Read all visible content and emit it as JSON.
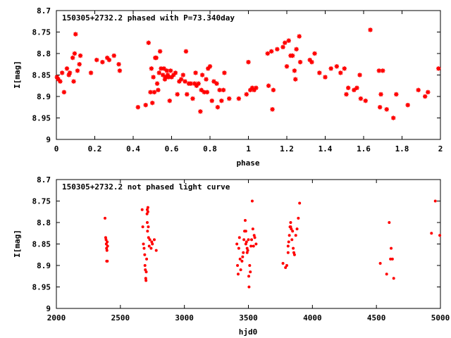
{
  "colors": {
    "points": "#ff0000",
    "frame": "#000000",
    "background": "#ffffff"
  },
  "chart_data": [
    {
      "type": "scatter",
      "title": "150305+2732.2 phased with P=73.340day",
      "xlabel": "phase",
      "ylabel": "I[mag]",
      "xlim": [
        0,
        2
      ],
      "ylim": [
        8.7,
        9
      ],
      "y_inverted": true,
      "grid": false,
      "xticks": [
        0,
        0.2,
        0.4,
        0.6,
        0.8,
        1,
        1.2,
        1.4,
        1.6,
        1.8,
        2
      ],
      "xtick_labels": [
        "0",
        "0.2",
        "0.4",
        "0.6",
        "0.8",
        "1",
        "1.2",
        "1.4",
        "1.6",
        "1.8",
        "2"
      ],
      "yticks": [
        8.7,
        8.75,
        8.8,
        8.85,
        8.9,
        8.95,
        9
      ],
      "ytick_labels": [
        "8.7",
        "8.75",
        "8.8",
        "8.85",
        "8.9",
        "8.95",
        "9"
      ],
      "marker": "star",
      "points": [
        [
          0.003,
          8.855
        ],
        [
          0.01,
          8.86
        ],
        [
          0.02,
          8.865
        ],
        [
          0.03,
          8.845
        ],
        [
          0.04,
          8.89
        ],
        [
          0.055,
          8.835
        ],
        [
          0.065,
          8.85
        ],
        [
          0.07,
          8.845
        ],
        [
          0.085,
          8.81
        ],
        [
          0.09,
          8.865
        ],
        [
          0.095,
          8.8
        ],
        [
          0.1,
          8.755
        ],
        [
          0.11,
          8.84
        ],
        [
          0.12,
          8.825
        ],
        [
          0.125,
          8.805
        ],
        [
          0.18,
          8.845
        ],
        [
          0.21,
          8.815
        ],
        [
          0.24,
          8.82
        ],
        [
          0.265,
          8.81
        ],
        [
          0.275,
          8.815
        ],
        [
          0.3,
          8.805
        ],
        [
          0.325,
          8.825
        ],
        [
          0.33,
          8.84
        ],
        [
          0.425,
          8.925
        ],
        [
          0.465,
          8.92
        ],
        [
          0.48,
          8.775
        ],
        [
          0.49,
          8.89
        ],
        [
          0.495,
          8.835
        ],
        [
          0.5,
          8.915
        ],
        [
          0.505,
          8.855
        ],
        [
          0.51,
          8.89
        ],
        [
          0.515,
          8.81
        ],
        [
          0.52,
          8.81
        ],
        [
          0.525,
          8.87
        ],
        [
          0.53,
          8.885
        ],
        [
          0.535,
          8.845
        ],
        [
          0.54,
          8.795
        ],
        [
          0.545,
          8.835
        ],
        [
          0.555,
          8.85
        ],
        [
          0.56,
          8.835
        ],
        [
          0.565,
          8.86
        ],
        [
          0.57,
          8.855
        ],
        [
          0.575,
          8.84
        ],
        [
          0.58,
          8.85
        ],
        [
          0.585,
          8.855
        ],
        [
          0.59,
          8.91
        ],
        [
          0.595,
          8.84
        ],
        [
          0.6,
          8.855
        ],
        [
          0.61,
          8.85
        ],
        [
          0.62,
          8.845
        ],
        [
          0.63,
          8.895
        ],
        [
          0.64,
          8.865
        ],
        [
          0.65,
          8.86
        ],
        [
          0.66,
          8.85
        ],
        [
          0.67,
          8.865
        ],
        [
          0.675,
          8.795
        ],
        [
          0.68,
          8.895
        ],
        [
          0.69,
          8.87
        ],
        [
          0.7,
          8.87
        ],
        [
          0.71,
          8.905
        ],
        [
          0.72,
          8.87
        ],
        [
          0.725,
          8.845
        ],
        [
          0.73,
          8.875
        ],
        [
          0.74,
          8.87
        ],
        [
          0.75,
          8.935
        ],
        [
          0.755,
          8.885
        ],
        [
          0.76,
          8.85
        ],
        [
          0.77,
          8.89
        ],
        [
          0.78,
          8.86
        ],
        [
          0.785,
          8.89
        ],
        [
          0.79,
          8.835
        ],
        [
          0.8,
          8.83
        ],
        [
          0.81,
          8.91
        ],
        [
          0.82,
          8.865
        ],
        [
          0.835,
          8.87
        ],
        [
          0.84,
          8.925
        ],
        [
          0.85,
          8.885
        ],
        [
          0.86,
          8.91
        ],
        [
          0.87,
          8.885
        ],
        [
          0.875,
          8.845
        ],
        [
          0.9,
          8.905
        ],
        [
          0.95,
          8.905
        ],
        [
          0.99,
          8.895
        ],
        [
          1.0,
          8.82
        ],
        [
          1.01,
          8.885
        ],
        [
          1.02,
          8.88
        ],
        [
          1.03,
          8.885
        ],
        [
          1.04,
          8.88
        ],
        [
          1.1,
          8.8
        ],
        [
          1.105,
          8.875
        ],
        [
          1.12,
          8.795
        ],
        [
          1.125,
          8.93
        ],
        [
          1.13,
          8.885
        ],
        [
          1.15,
          8.79
        ],
        [
          1.18,
          8.785
        ],
        [
          1.19,
          8.775
        ],
        [
          1.2,
          8.83
        ],
        [
          1.21,
          8.77
        ],
        [
          1.22,
          8.805
        ],
        [
          1.23,
          8.805
        ],
        [
          1.24,
          8.84
        ],
        [
          1.245,
          8.86
        ],
        [
          1.25,
          8.79
        ],
        [
          1.265,
          8.76
        ],
        [
          1.27,
          8.82
        ],
        [
          1.32,
          8.815
        ],
        [
          1.33,
          8.82
        ],
        [
          1.345,
          8.8
        ],
        [
          1.37,
          8.845
        ],
        [
          1.4,
          8.855
        ],
        [
          1.43,
          8.835
        ],
        [
          1.46,
          8.83
        ],
        [
          1.48,
          8.845
        ],
        [
          1.5,
          8.835
        ],
        [
          1.51,
          8.895
        ],
        [
          1.52,
          8.88
        ],
        [
          1.55,
          8.885
        ],
        [
          1.565,
          8.88
        ],
        [
          1.58,
          8.85
        ],
        [
          1.585,
          8.905
        ],
        [
          1.61,
          8.91
        ],
        [
          1.635,
          8.745
        ],
        [
          1.68,
          8.84
        ],
        [
          1.685,
          8.925
        ],
        [
          1.69,
          8.895
        ],
        [
          1.7,
          8.84
        ],
        [
          1.72,
          8.93
        ],
        [
          1.755,
          8.95
        ],
        [
          1.77,
          8.895
        ],
        [
          1.83,
          8.92
        ],
        [
          1.885,
          8.885
        ],
        [
          1.92,
          8.9
        ],
        [
          1.935,
          8.89
        ],
        [
          1.99,
          8.835
        ]
      ]
    },
    {
      "type": "scatter",
      "title": "150305+2732.2 not phased light curve",
      "xlabel": "hjd0",
      "ylabel": "I[mag]",
      "xlim": [
        2000,
        5000
      ],
      "ylim": [
        8.7,
        9
      ],
      "y_inverted": true,
      "grid": false,
      "xticks": [
        2000,
        2500,
        3000,
        3500,
        4000,
        4500,
        5000
      ],
      "xtick_labels": [
        "2000",
        "2500",
        "3000",
        "3500",
        "4000",
        "4500",
        "5000"
      ],
      "yticks": [
        8.7,
        8.75,
        8.8,
        8.85,
        8.9,
        8.95,
        9
      ],
      "ytick_labels": [
        "8.7",
        "8.75",
        "8.8",
        "8.85",
        "8.9",
        "8.95",
        "9"
      ],
      "marker": "dot",
      "points": [
        [
          2380,
          8.79
        ],
        [
          2385,
          8.835
        ],
        [
          2388,
          8.84
        ],
        [
          2390,
          8.85
        ],
        [
          2392,
          8.86
        ],
        [
          2395,
          8.865
        ],
        [
          2397,
          8.845
        ],
        [
          2400,
          8.855
        ],
        [
          2393,
          8.89
        ],
        [
          2398,
          8.89
        ],
        [
          2670,
          8.77
        ],
        [
          2675,
          8.81
        ],
        [
          2680,
          8.85
        ],
        [
          2685,
          8.86
        ],
        [
          2690,
          8.875
        ],
        [
          2692,
          8.9
        ],
        [
          2695,
          8.91
        ],
        [
          2698,
          8.93
        ],
        [
          2700,
          8.935
        ],
        [
          2702,
          8.915
        ],
        [
          2705,
          8.885
        ],
        [
          2708,
          8.78
        ],
        [
          2710,
          8.8
        ],
        [
          2712,
          8.82
        ],
        [
          2715,
          8.765
        ],
        [
          2718,
          8.81
        ],
        [
          2720,
          8.835
        ],
        [
          2725,
          8.855
        ],
        [
          2730,
          8.84
        ],
        [
          2740,
          8.86
        ],
        [
          2745,
          8.845
        ],
        [
          2750,
          8.85
        ],
        [
          2765,
          8.84
        ],
        [
          2780,
          8.865
        ],
        [
          2710,
          8.77
        ],
        [
          2715,
          8.775
        ],
        [
          3410,
          8.85
        ],
        [
          3415,
          8.9
        ],
        [
          3420,
          8.92
        ],
        [
          3425,
          8.86
        ],
        [
          3430,
          8.835
        ],
        [
          3435,
          8.885
        ],
        [
          3440,
          8.91
        ],
        [
          3450,
          8.89
        ],
        [
          3455,
          8.88
        ],
        [
          3460,
          8.87
        ],
        [
          3465,
          8.84
        ],
        [
          3470,
          8.82
        ],
        [
          3475,
          8.795
        ],
        [
          3480,
          8.85
        ],
        [
          3485,
          8.845
        ],
        [
          3490,
          8.86
        ],
        [
          3495,
          8.865
        ],
        [
          3500,
          8.84
        ],
        [
          3503,
          8.925
        ],
        [
          3505,
          8.95
        ],
        [
          3510,
          8.9
        ],
        [
          3515,
          8.915
        ],
        [
          3520,
          8.855
        ],
        [
          3525,
          8.84
        ],
        [
          3530,
          8.75
        ],
        [
          3535,
          8.815
        ],
        [
          3540,
          8.855
        ],
        [
          3545,
          8.83
        ],
        [
          3550,
          8.835
        ],
        [
          3560,
          8.85
        ],
        [
          3480,
          8.82
        ],
        [
          3490,
          8.87
        ],
        [
          3770,
          8.895
        ],
        [
          3790,
          8.905
        ],
        [
          3800,
          8.9
        ],
        [
          3810,
          8.87
        ],
        [
          3815,
          8.845
        ],
        [
          3820,
          8.83
        ],
        [
          3825,
          8.81
        ],
        [
          3830,
          8.8
        ],
        [
          3835,
          8.815
        ],
        [
          3840,
          8.84
        ],
        [
          3845,
          8.82
        ],
        [
          3850,
          8.86
        ],
        [
          3855,
          8.87
        ],
        [
          3860,
          8.875
        ],
        [
          3870,
          8.83
        ],
        [
          3880,
          8.815
        ],
        [
          3890,
          8.79
        ],
        [
          3900,
          8.755
        ],
        [
          3810,
          8.855
        ],
        [
          3830,
          8.81
        ],
        [
          4530,
          8.895
        ],
        [
          4580,
          8.92
        ],
        [
          4600,
          8.8
        ],
        [
          4610,
          8.885
        ],
        [
          4615,
          8.86
        ],
        [
          4625,
          8.885
        ],
        [
          4635,
          8.93
        ],
        [
          4930,
          8.825
        ],
        [
          4960,
          8.75
        ],
        [
          4995,
          8.83
        ]
      ]
    }
  ]
}
